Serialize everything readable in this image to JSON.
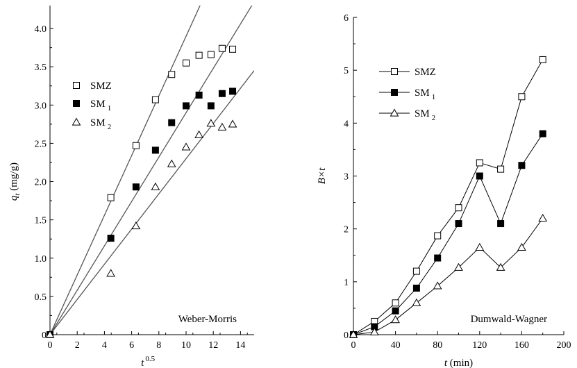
{
  "chart_data": [
    {
      "type": "scatter",
      "annotation": "Weber-Morris",
      "xlabel": "t",
      "xlabel_sup": "0.5",
      "ylabel": "q",
      "ylabel_sub": "t",
      "ylabel_unit": " (mg/g)",
      "xlim": [
        0,
        15
      ],
      "ylim": [
        0,
        4.3
      ],
      "xticks": [
        0,
        2,
        4,
        6,
        8,
        10,
        12,
        14
      ],
      "yticks": [
        0,
        0.5,
        1.0,
        1.5,
        2.0,
        2.5,
        3.0,
        3.5,
        4.0
      ],
      "ytick_labels": [
        "0",
        "0.5",
        "1.0",
        "1.5",
        "2.0",
        "2.5",
        "3.0",
        "3.5",
        "4.0"
      ],
      "legend_position": "upper-left",
      "series": [
        {
          "name": "SMZ",
          "name_sub": "",
          "marker": "square-open",
          "x": [
            0,
            4.47,
            6.32,
            7.75,
            8.94,
            10.0,
            10.95,
            11.83,
            12.65,
            13.42
          ],
          "y": [
            0,
            1.79,
            2.47,
            3.07,
            3.4,
            3.55,
            3.65,
            3.66,
            3.74,
            3.73
          ],
          "fit_slope": 0.39
        },
        {
          "name": "SM",
          "name_sub": "1",
          "marker": "square-filled",
          "x": [
            0,
            4.47,
            6.32,
            7.75,
            8.94,
            10.0,
            10.95,
            11.83,
            12.65,
            13.42
          ],
          "y": [
            0,
            1.26,
            1.93,
            2.41,
            2.77,
            2.99,
            3.13,
            2.99,
            3.15,
            3.18
          ],
          "fit_slope": 0.29
        },
        {
          "name": "SM",
          "name_sub": "2",
          "marker": "triangle-open",
          "x": [
            0,
            4.47,
            6.32,
            7.75,
            8.94,
            10.0,
            10.95,
            11.83,
            12.65,
            13.42
          ],
          "y": [
            0,
            0.8,
            1.42,
            1.93,
            2.23,
            2.45,
            2.61,
            2.76,
            2.71,
            2.75
          ],
          "fit_slope": 0.23
        }
      ]
    },
    {
      "type": "line",
      "annotation": "Dumwald-Wagner",
      "xlabel": "t",
      "xlabel_unit": " (min)",
      "ylabel": "B×t",
      "xlim": [
        0,
        200
      ],
      "ylim": [
        0,
        6
      ],
      "xticks": [
        0,
        40,
        80,
        120,
        160,
        200
      ],
      "yticks": [
        0,
        1,
        2,
        3,
        4,
        5,
        6
      ],
      "legend_position": "upper-left",
      "series": [
        {
          "name": "SMZ",
          "name_sub": "",
          "marker": "square-open",
          "x": [
            0,
            20,
            40,
            60,
            80,
            100,
            120,
            140,
            160,
            180
          ],
          "y": [
            0,
            0.25,
            0.6,
            1.2,
            1.87,
            2.4,
            3.25,
            3.13,
            4.5,
            5.2
          ]
        },
        {
          "name": "SM",
          "name_sub": "1",
          "marker": "square-filled",
          "x": [
            0,
            20,
            40,
            60,
            80,
            100,
            120,
            140,
            160,
            180
          ],
          "y": [
            0,
            0.15,
            0.45,
            0.88,
            1.45,
            2.1,
            3.0,
            2.1,
            3.2,
            3.8
          ]
        },
        {
          "name": "SM",
          "name_sub": "2",
          "marker": "triangle-open",
          "x": [
            0,
            20,
            40,
            60,
            80,
            100,
            120,
            140,
            160,
            180
          ],
          "y": [
            0,
            0.05,
            0.28,
            0.6,
            0.92,
            1.27,
            1.65,
            1.27,
            1.65,
            2.2
          ]
        }
      ]
    }
  ]
}
